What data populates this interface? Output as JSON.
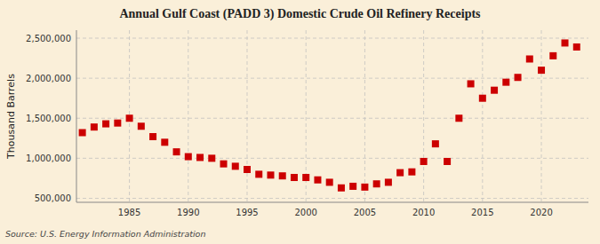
{
  "chart_data": {
    "type": "scatter",
    "title": "Annual Gulf Coast (PADD 3) Domestic Crude Oil Refinery Receipts",
    "y_label": "Thousand Barrels",
    "annotations": [
      "Source: U.S. Energy Information Administration"
    ],
    "x": [
      1981,
      1982,
      1983,
      1984,
      1985,
      1986,
      1987,
      1988,
      1989,
      1990,
      1991,
      1992,
      1993,
      1994,
      1995,
      1996,
      1997,
      1998,
      1999,
      2000,
      2001,
      2002,
      2003,
      2004,
      2005,
      2006,
      2007,
      2008,
      2009,
      2010,
      2011,
      2012,
      2013,
      2014,
      2015,
      2016,
      2017,
      2018,
      2019,
      2020,
      2021,
      2022,
      2023
    ],
    "values": [
      1320000,
      1390000,
      1430000,
      1440000,
      1500000,
      1400000,
      1270000,
      1200000,
      1080000,
      1020000,
      1010000,
      1000000,
      930000,
      900000,
      860000,
      800000,
      790000,
      780000,
      760000,
      760000,
      730000,
      700000,
      630000,
      650000,
      640000,
      680000,
      700000,
      820000,
      830000,
      960000,
      1180000,
      960000,
      1500000,
      1930000,
      1750000,
      1850000,
      1950000,
      2010000,
      2240000,
      2100000,
      2280000,
      2440000,
      2390000
    ],
    "color": "#cc0000",
    "marker": "square",
    "xlim": [
      1980.5,
      2024
    ],
    "ylim": [
      450000,
      2600000
    ],
    "xticks": [
      1985,
      1990,
      1995,
      2000,
      2005,
      2010,
      2015,
      2020
    ],
    "yticks": [
      {
        "value": 500000,
        "label": "500,000"
      },
      {
        "value": 1000000,
        "label": "1,000,000"
      },
      {
        "value": 1500000,
        "label": "1,500,000"
      },
      {
        "value": 2000000,
        "label": "2,000,000"
      },
      {
        "value": 2500000,
        "label": "2,500,000"
      }
    ],
    "grid": true
  }
}
